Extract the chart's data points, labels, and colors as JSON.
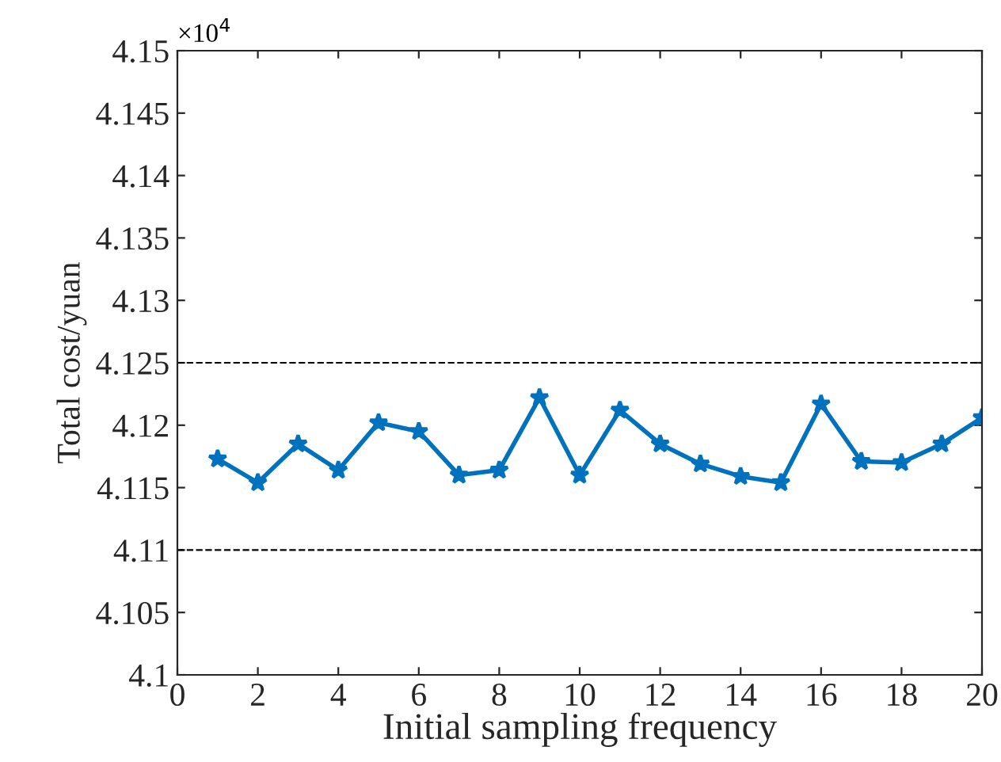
{
  "chart_data": {
    "type": "line",
    "xlabel": "Initial sampling frequency",
    "ylabel": "Total cost/yuan",
    "x": [
      1,
      2,
      3,
      4,
      5,
      6,
      7,
      8,
      9,
      10,
      11,
      12,
      13,
      14,
      15,
      16,
      17,
      18,
      19,
      20
    ],
    "series": [
      {
        "color": "#0072bd",
        "values": [
          4.1173,
          4.1154,
          4.1185,
          4.1164,
          4.1202,
          4.1195,
          4.116,
          4.1164,
          4.1222,
          4.116,
          4.1212,
          4.1185,
          4.1169,
          4.1159,
          4.1154,
          4.1217,
          4.1171,
          4.117,
          4.1185,
          4.1206
        ]
      }
    ],
    "xlim": [
      0,
      20
    ],
    "xticks": [
      0,
      2,
      4,
      6,
      8,
      10,
      12,
      14,
      16,
      18,
      20
    ],
    "ylim": [
      4.1,
      4.15
    ],
    "yticks": [
      4.1,
      4.105,
      4.11,
      4.115,
      4.12,
      4.125,
      4.13,
      4.135,
      4.14,
      4.145,
      4.15
    ],
    "ref_lines": [
      {
        "axis": "y",
        "value": 4.125,
        "color": "#000000",
        "line_style": "dashed"
      },
      {
        "axis": "y",
        "value": 4.11,
        "color": "#000000",
        "line_style": "dashed"
      }
    ],
    "annotations": [
      "×10$^{4}$"
    ],
    "marker": "star",
    "line_style": "solid",
    "grid": false,
    "legend": false
  }
}
